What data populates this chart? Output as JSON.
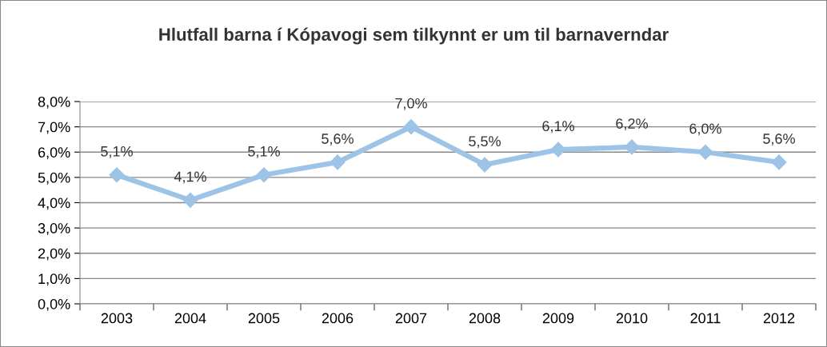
{
  "chart_data": {
    "type": "line",
    "title": "Hlutfall barna í Kópavogi sem tilkynnt er um til barnaverndar",
    "categories": [
      "2003",
      "2004",
      "2005",
      "2006",
      "2007",
      "2008",
      "2009",
      "2010",
      "2011",
      "2012"
    ],
    "series": [
      {
        "color": "#9dc3e6",
        "values": [
          5.1,
          4.1,
          5.1,
          5.6,
          7.0,
          5.5,
          6.1,
          6.2,
          6.0,
          5.6
        ],
        "value_labels": [
          "5,1%",
          "4,1%",
          "5,1%",
          "5,6%",
          "7,0%",
          "5,5%",
          "6,1%",
          "6,2%",
          "6,0%",
          "5,6%"
        ]
      }
    ],
    "ylim": [
      0,
      8
    ],
    "yticks": [
      {
        "value": 0,
        "label": "0,0%"
      },
      {
        "value": 1,
        "label": "1,0%"
      },
      {
        "value": 2,
        "label": "2,0%"
      },
      {
        "value": 3,
        "label": "3,0%"
      },
      {
        "value": 4,
        "label": "4,0%"
      },
      {
        "value": 5,
        "label": "5,0%"
      },
      {
        "value": 6,
        "label": "6,0%"
      },
      {
        "value": 7,
        "label": "7,0%"
      },
      {
        "value": 8,
        "label": "8,0%"
      }
    ],
    "grid": "y",
    "marker": "diamond",
    "line_style": "solid",
    "legend": false
  }
}
